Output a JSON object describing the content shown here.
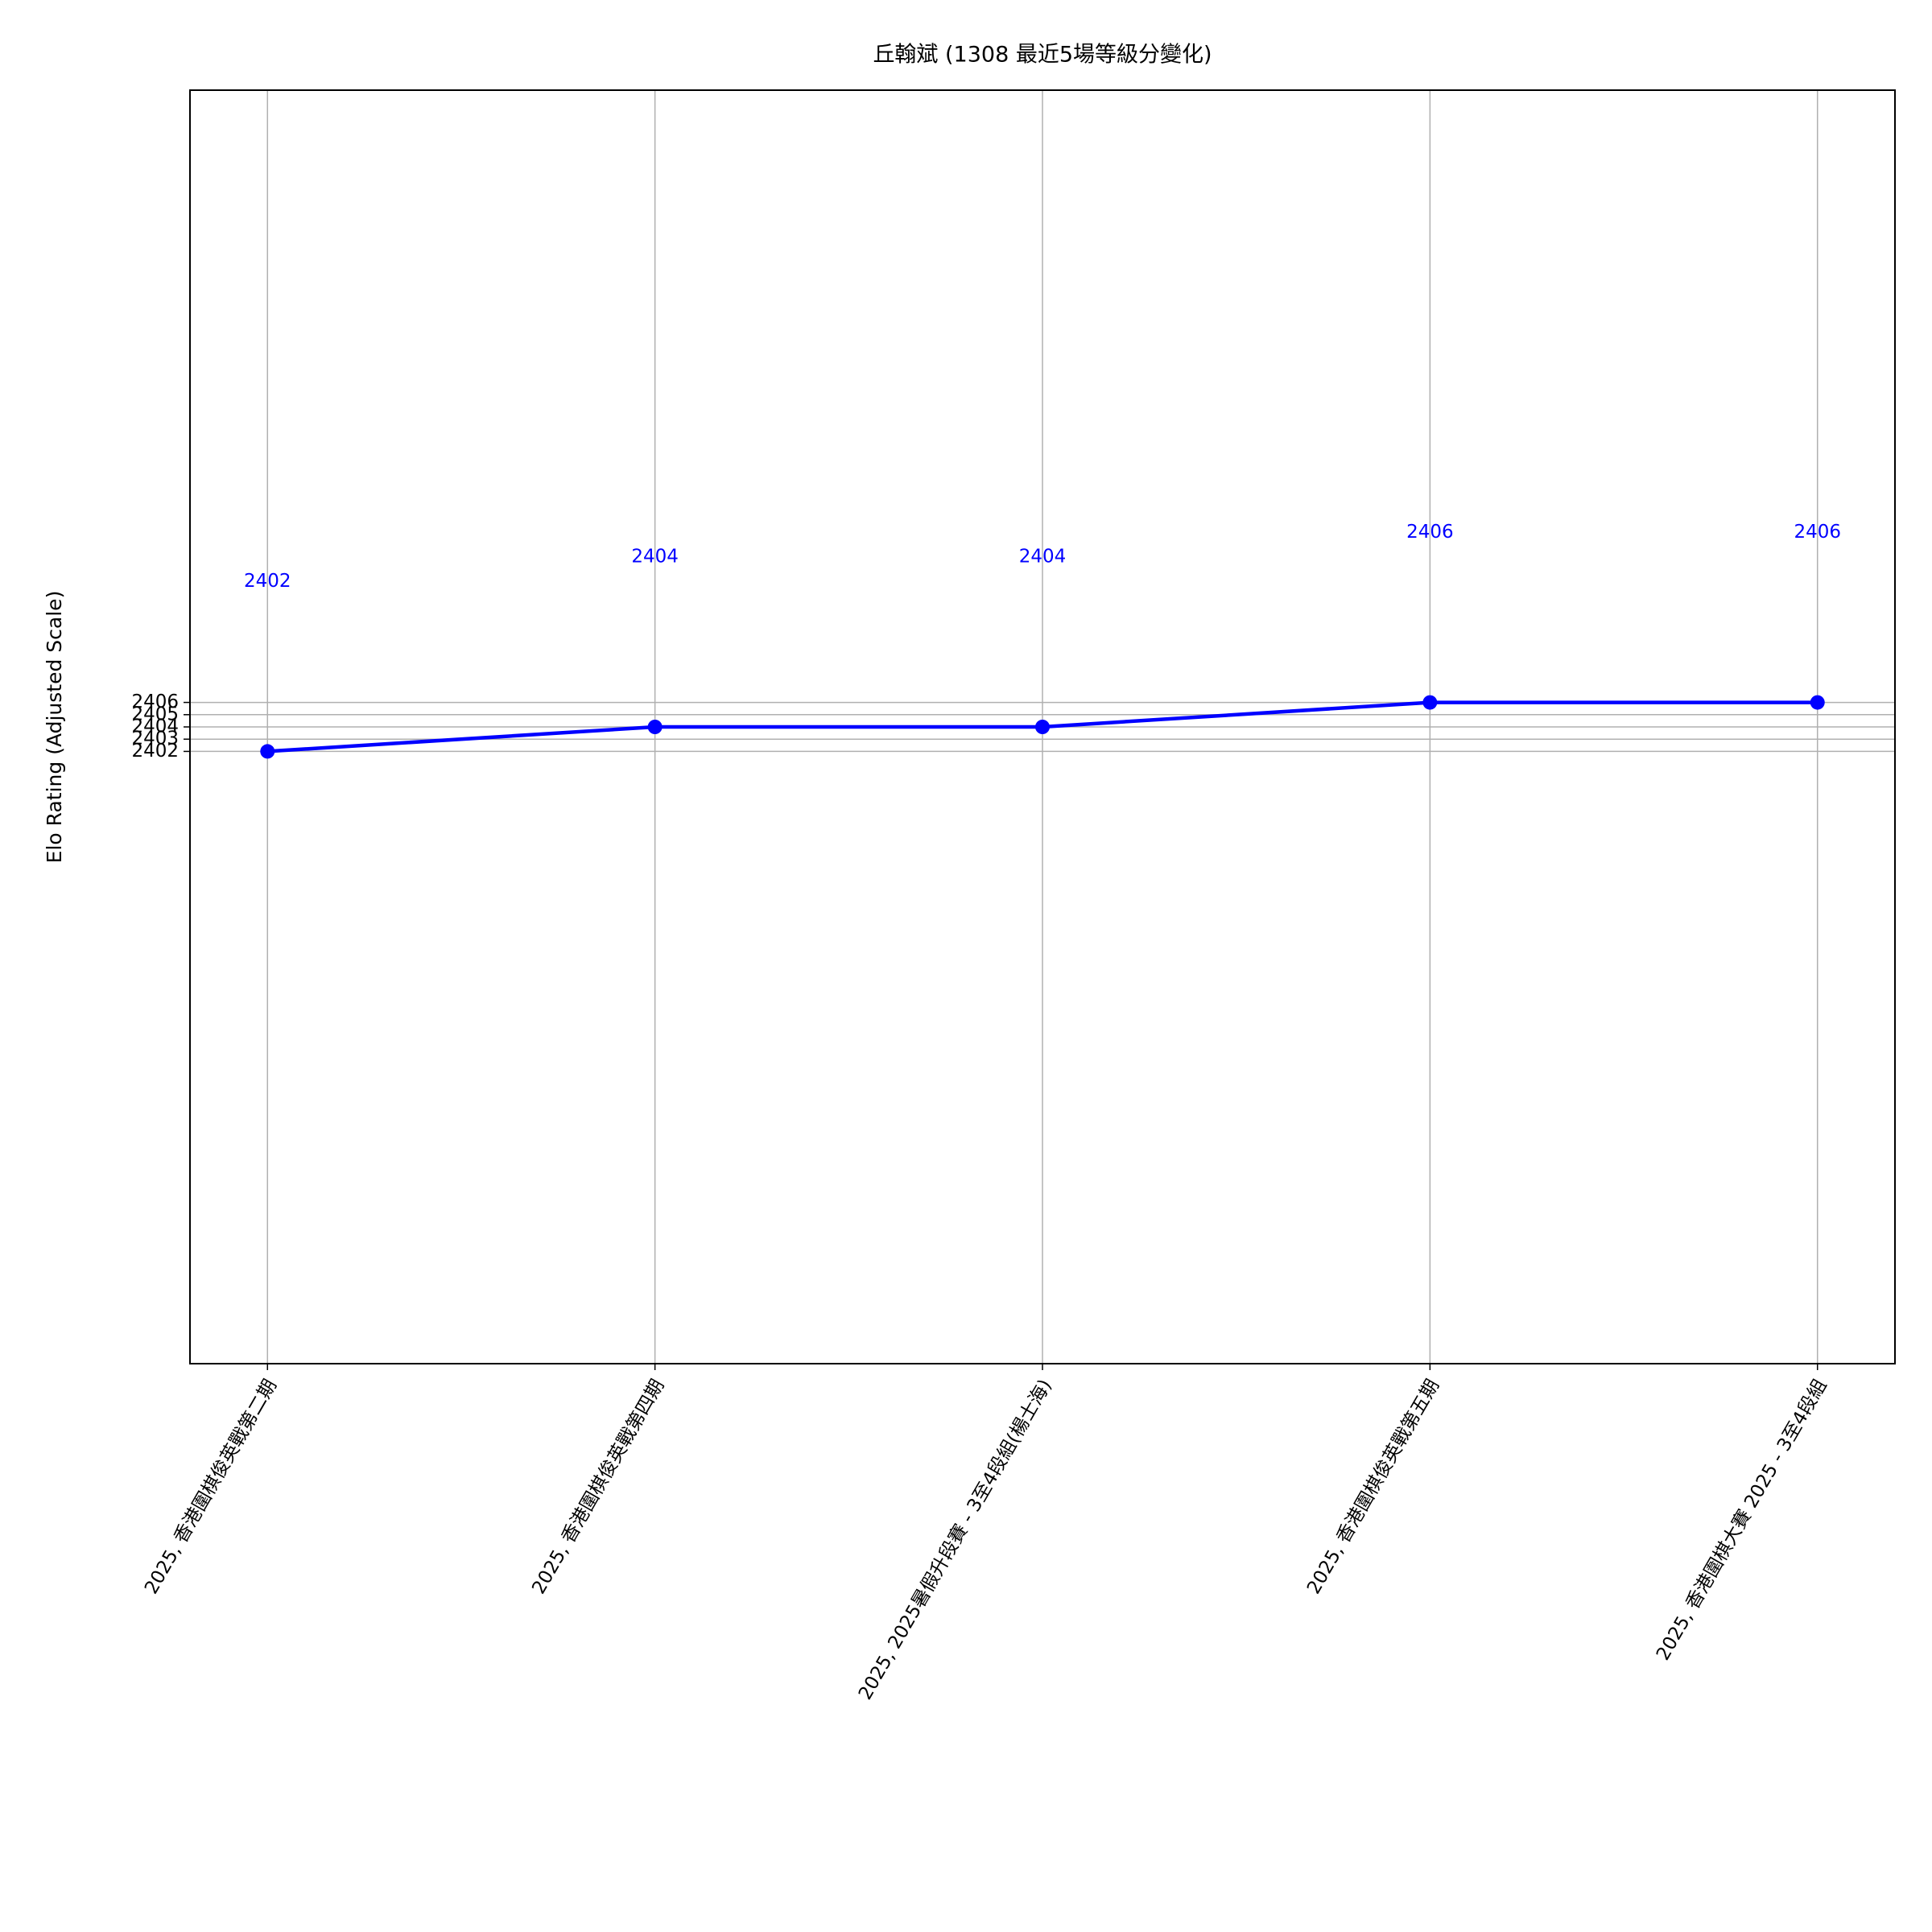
{
  "chart_data": {
    "type": "line",
    "title": "丘翰斌 (1308 最近5場等級分變化)",
    "y_label": "Elo Rating (Adjusted Scale)",
    "categories": [
      "2025, 香港圍棋俊英戰第二期",
      "2025, 香港圍棋俊英戰第四期",
      "2025, 2025暑假升段賽 - 3至4段組(楊士海)",
      "2025, 香港圍棋俊英戰第五期",
      "2025, 香港圍棋大賽 2025 - 3至4段組"
    ],
    "series": [
      {
        "name": "Elo",
        "color": "#0000ff",
        "values": [
          2402,
          2404,
          2404,
          2406,
          2406
        ]
      }
    ],
    "ylim": [
      2352,
      2456
    ],
    "yticks": [
      2402,
      2403,
      2404,
      2405,
      2406
    ],
    "grid": true
  }
}
